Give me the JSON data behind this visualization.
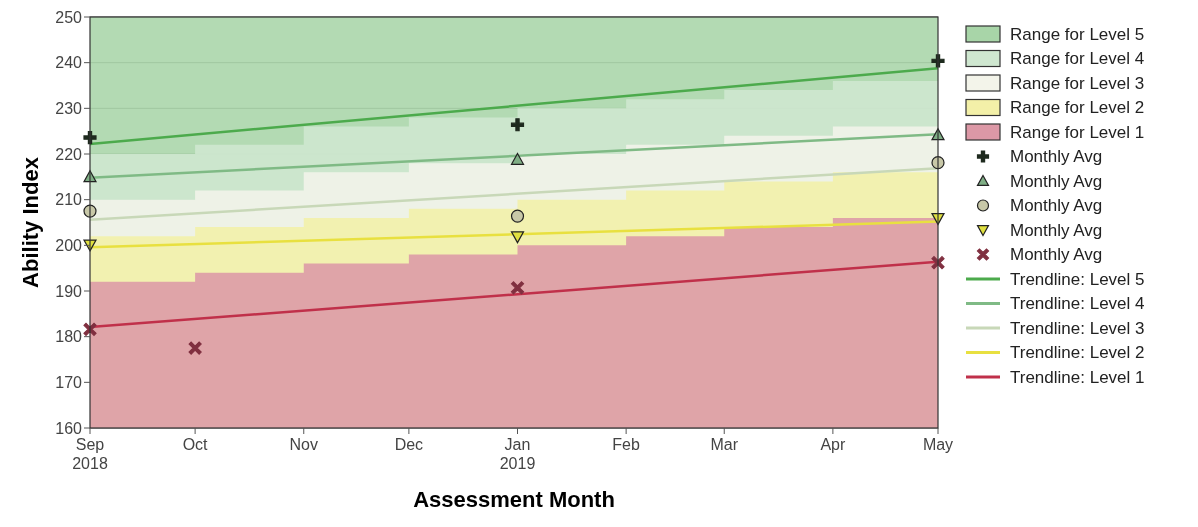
{
  "chart_data": {
    "type": "area",
    "xlabel": "Assessment Month",
    "ylabel": "Ability Index",
    "grid": "y",
    "legend": "right",
    "x": [
      "2018-09",
      "2018-10",
      "2018-11",
      "2018-12",
      "2019-01",
      "2019-02",
      "2019-03",
      "2019-04",
      "2019-05"
    ],
    "xlim": [
      "2018-09",
      "2019-05"
    ],
    "xticks": [
      {
        "value": "2018-09",
        "label": "Sep\n2018"
      },
      {
        "value": "2018-10",
        "label": "Oct"
      },
      {
        "value": "2018-11",
        "label": "Nov"
      },
      {
        "value": "2018-12",
        "label": "Dec"
      },
      {
        "value": "2019-01",
        "label": "Jan\n2019"
      },
      {
        "value": "2019-02",
        "label": "Feb"
      },
      {
        "value": "2019-03",
        "label": "Mar"
      },
      {
        "value": "2019-04",
        "label": "Apr"
      },
      {
        "value": "2019-05",
        "label": "May"
      }
    ],
    "ylim": [
      160,
      250
    ],
    "yticks": [
      160,
      170,
      180,
      190,
      200,
      210,
      220,
      230,
      240,
      250
    ],
    "series": [
      {
        "name": "Range for Level 5",
        "color": "#a8d5a8",
        "values": [
          250,
          250,
          250,
          250,
          250,
          250,
          250,
          250,
          250
        ]
      },
      {
        "name": "Range for Level 4",
        "color": "#cfe7d0",
        "values": [
          220,
          222,
          226,
          228,
          230,
          232,
          234,
          236,
          236
        ]
      },
      {
        "name": "Range for Level 3",
        "color": "#f3f4ea",
        "values": [
          210,
          212,
          216,
          218,
          220,
          222,
          224,
          226,
          226
        ]
      },
      {
        "name": "Range for Level 2",
        "color": "#f3f0a8",
        "values": [
          202,
          204,
          206,
          208,
          210,
          212,
          214,
          216,
          216
        ]
      },
      {
        "name": "Range for Level 1",
        "color": "#dc98a6",
        "values": [
          192,
          194,
          196,
          198,
          200,
          202,
          204,
          206,
          206
        ]
      },
      {
        "name": "Monthly Avg",
        "type": "scatter",
        "marker": "cross",
        "color": "#1e2a1e",
        "x": [
          "2018-09",
          "2019-01",
          "2019-05"
        ],
        "values": [
          223.6,
          226.4,
          240.4
        ]
      },
      {
        "name": "Monthly Avg",
        "type": "scatter",
        "marker": "triangle",
        "color": "#7fae85",
        "x": [
          "2018-09",
          "2019-01",
          "2019-05"
        ],
        "values": [
          215,
          218.8,
          224.2
        ]
      },
      {
        "name": "Monthly Avg",
        "type": "scatter",
        "marker": "circle",
        "color": "#c8c8a8",
        "x": [
          "2018-09",
          "2019-01",
          "2019-05"
        ],
        "values": [
          207.5,
          206.4,
          218.1
        ]
      },
      {
        "name": "Monthly Avg",
        "type": "scatter",
        "marker": "triangle-down",
        "color": "#e0e040",
        "x": [
          "2018-09",
          "2019-01",
          "2019-05"
        ],
        "values": [
          200.1,
          201.9,
          205.9
        ]
      },
      {
        "name": "Monthly Avg",
        "type": "scatter",
        "marker": "x",
        "color": "#803040",
        "x": [
          "2018-09",
          "2018-10",
          "2019-01",
          "2019-05"
        ],
        "values": [
          181.6,
          177.5,
          190.7,
          196.2
        ]
      },
      {
        "name": "Trendline: Level 5",
        "type": "line",
        "color": "#4caa4c",
        "x": [
          "2018-09",
          "2019-05"
        ],
        "values": [
          222.2,
          238.8
        ]
      },
      {
        "name": "Trendline: Level 4",
        "type": "line",
        "color": "#7fba85",
        "x": [
          "2018-09",
          "2019-05"
        ],
        "values": [
          214.8,
          224.3
        ]
      },
      {
        "name": "Trendline: Level 3",
        "type": "line",
        "color": "#c8d8b8",
        "x": [
          "2018-09",
          "2019-05"
        ],
        "values": [
          205.6,
          216.9
        ]
      },
      {
        "name": "Trendline: Level 2",
        "type": "line",
        "color": "#e8e040",
        "x": [
          "2018-09",
          "2019-05"
        ],
        "values": [
          199.6,
          205.2
        ]
      },
      {
        "name": "Trendline: Level 1",
        "type": "line",
        "color": "#c0304a",
        "x": [
          "2018-09",
          "2019-05"
        ],
        "values": [
          182.1,
          196.4
        ]
      }
    ]
  }
}
